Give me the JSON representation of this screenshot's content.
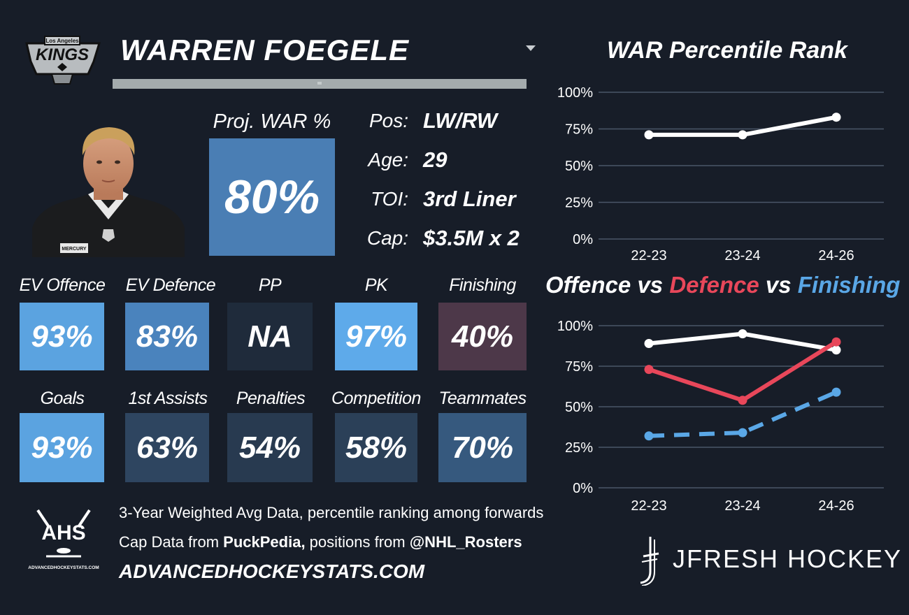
{
  "header": {
    "team_logo_text": "Los Angeles KINGS",
    "player_name": "WARREN FOEGELE"
  },
  "proj_war": {
    "label": "Proj. WAR %",
    "value": "80%",
    "color": "#4a7eb4"
  },
  "info": [
    {
      "label": "Pos:",
      "value": "LW/RW"
    },
    {
      "label": "Age:",
      "value": "29"
    },
    {
      "label": "TOI:",
      "value": "3rd Liner"
    },
    {
      "label": "Cap:",
      "value": "$3.5M x 2"
    }
  ],
  "stats_row1": [
    {
      "label": "EV Offence",
      "value": "93%",
      "color": "#5ba3e0"
    },
    {
      "label": "EV Defence",
      "value": "83%",
      "color": "#4a83bd"
    },
    {
      "label": "PP",
      "value": "NA",
      "color": "#1f2b3b"
    },
    {
      "label": "PK",
      "value": "97%",
      "color": "#5eaaea"
    },
    {
      "label": "Finishing",
      "value": "40%",
      "color": "#4d3849"
    }
  ],
  "stats_row2": [
    {
      "label": "Goals",
      "value": "93%",
      "color": "#5ba3e0"
    },
    {
      "label": "1st Assists",
      "value": "63%",
      "color": "#2e4560"
    },
    {
      "label": "Penalties",
      "value": "54%",
      "color": "#283a50"
    },
    {
      "label": "Competition",
      "value": "58%",
      "color": "#2b4058"
    },
    {
      "label": "Teammates",
      "value": "70%",
      "color": "#36597e"
    }
  ],
  "footer": {
    "ahs_logo_text": "AHS",
    "ahs_logo_subtext": "ADVANCEDHOCKEYSTATS.COM",
    "line1": "3-Year Weighted Avg Data, percentile ranking among forwards",
    "line2_prefix": "Cap Data from ",
    "line2_bold1": "PuckPedia,",
    "line2_mid": " positions from ",
    "line2_bold2": "@NHL_Rosters",
    "site_url": "ADVANCEDHOCKEYSTATS.COM",
    "brand": "JFRESH HOCKEY"
  },
  "charts": {
    "war_title": "WAR Percentile Rank",
    "ovd_title_parts": [
      {
        "text": "Offence",
        "color": "#ffffff"
      },
      {
        "text": " vs ",
        "color": "#ffffff"
      },
      {
        "text": "Defence",
        "color": "#e8475a"
      },
      {
        "text": " vs ",
        "color": "#ffffff"
      },
      {
        "text": "Finishing",
        "color": "#5aa7e6"
      }
    ]
  },
  "chart_data": [
    {
      "type": "line",
      "title": "WAR Percentile Rank",
      "categories": [
        "22-23",
        "23-24",
        "24-26"
      ],
      "yticks": [
        "0%",
        "25%",
        "50%",
        "75%",
        "100%"
      ],
      "ylim": [
        0,
        100
      ],
      "grid": true,
      "series": [
        {
          "values": [
            71,
            71,
            83
          ],
          "color": "#ffffff",
          "dashed": false
        }
      ]
    },
    {
      "type": "line",
      "title": "Offence vs Defence vs Finishing",
      "categories": [
        "22-23",
        "23-24",
        "24-26"
      ],
      "yticks": [
        "0%",
        "25%",
        "50%",
        "75%",
        "100%"
      ],
      "ylim": [
        0,
        100
      ],
      "grid": true,
      "series": [
        {
          "name": "Offence",
          "values": [
            89,
            95,
            85
          ],
          "color": "#ffffff",
          "dashed": false
        },
        {
          "name": "Defence",
          "values": [
            73,
            54,
            90
          ],
          "color": "#e8475a",
          "dashed": false
        },
        {
          "name": "Finishing",
          "values": [
            32,
            34,
            59
          ],
          "color": "#5aa7e6",
          "dashed": true
        }
      ]
    }
  ]
}
